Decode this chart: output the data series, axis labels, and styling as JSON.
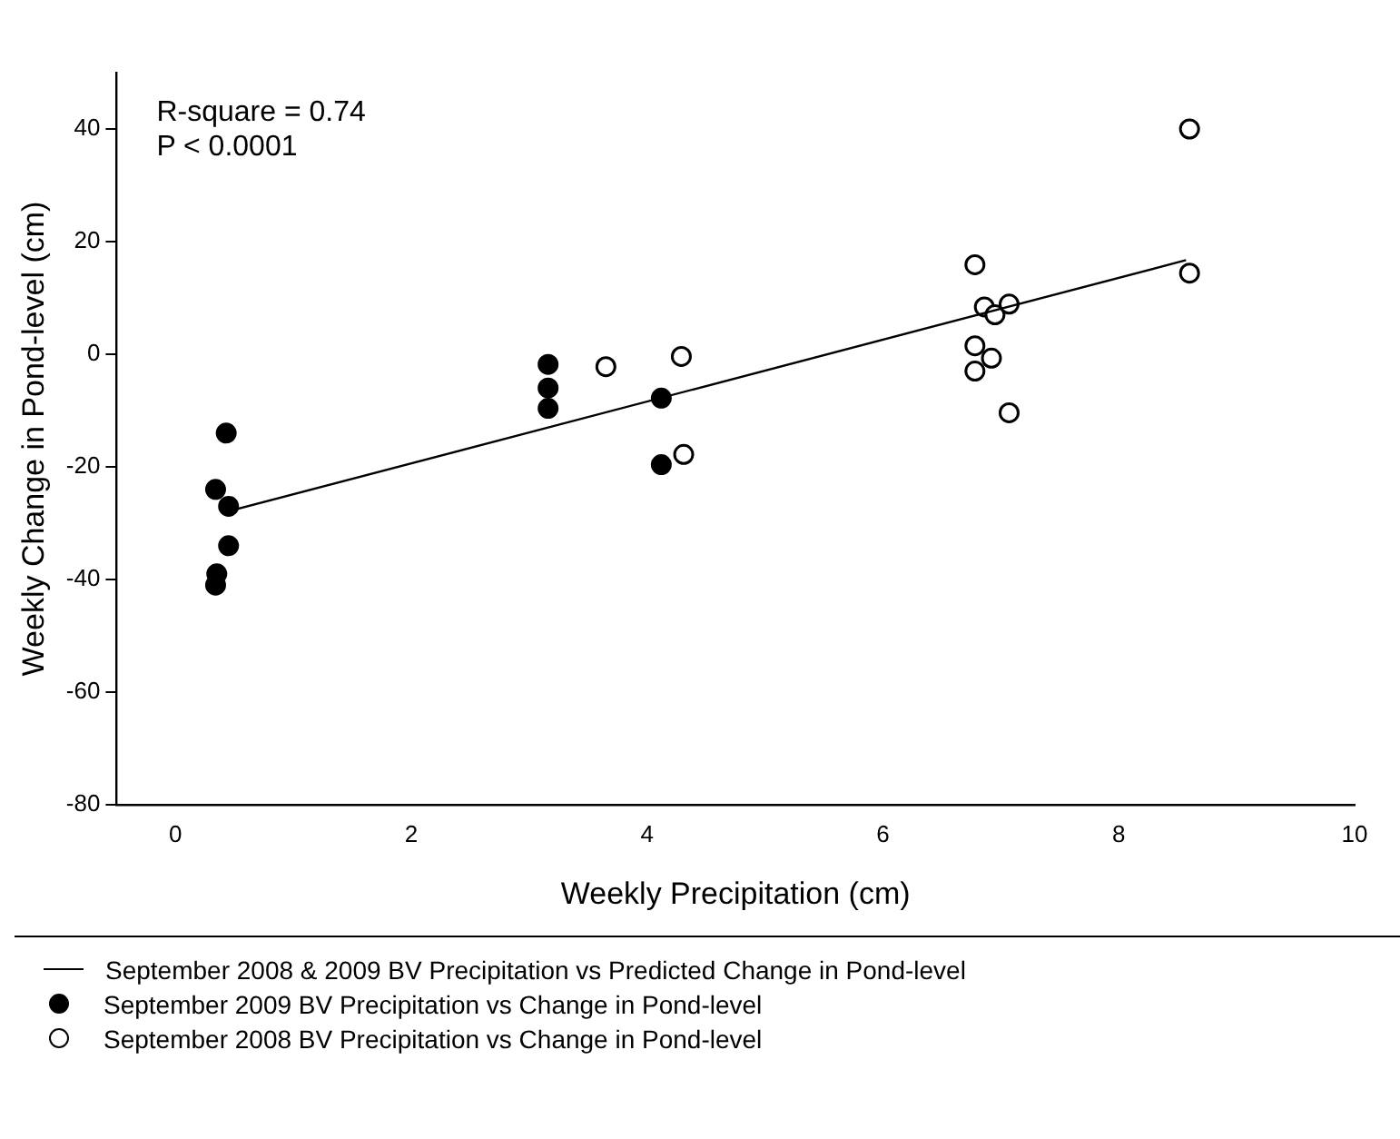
{
  "chart_data": {
    "type": "scatter",
    "xlabel": "Weekly Precipitation (cm)",
    "ylabel": "Weekly Change in Pond-level (cm)",
    "xlim": [
      -0.5,
      10
    ],
    "xticks": [
      0,
      2,
      4,
      6,
      8,
      10
    ],
    "ylim": [
      -80,
      50
    ],
    "yticks": [
      -80,
      -60,
      -40,
      -20,
      0,
      20,
      40
    ],
    "grid": false,
    "legend": "bottom",
    "annotations": [
      "R-square = 0.74",
      "P < 0.0001"
    ],
    "series": [
      {
        "name": "September 2008 & 2009 BV Precipitation vs Predicted Change in Pond-level",
        "type": "line",
        "color": "#000000",
        "marker": "none",
        "line_style": "solid",
        "x": [
          0.43,
          8.57
        ],
        "values": [
          -28,
          16.7
        ]
      },
      {
        "name": "September 2009 BV Precipitation vs Change in Pond-level",
        "type": "scatter",
        "color": "#000000",
        "marker": "circle",
        "x": [
          0.43,
          0.34,
          0.45,
          0.45,
          0.35,
          0.34,
          3.16,
          3.16,
          3.16,
          4.12,
          4.12
        ],
        "values": [
          -14,
          -24,
          -27,
          -34,
          -39,
          -41,
          -1.8,
          -6,
          -9.6,
          -7.8,
          -19.6
        ]
      },
      {
        "name": "September 2008 BV Precipitation vs Change in Pond-level",
        "type": "scatter",
        "color": "#ffffff",
        "marker": "circle",
        "x": [
          3.65,
          4.29,
          4.31,
          8.6,
          6.78,
          6.86,
          6.95,
          7.07,
          8.6,
          6.78,
          6.92,
          6.78,
          7.07
        ],
        "values": [
          -2.2,
          -0.4,
          -17.8,
          40,
          15.9,
          8.4,
          7.0,
          8.9,
          14.4,
          1.5,
          -0.7,
          -3,
          -10.4
        ]
      }
    ]
  }
}
